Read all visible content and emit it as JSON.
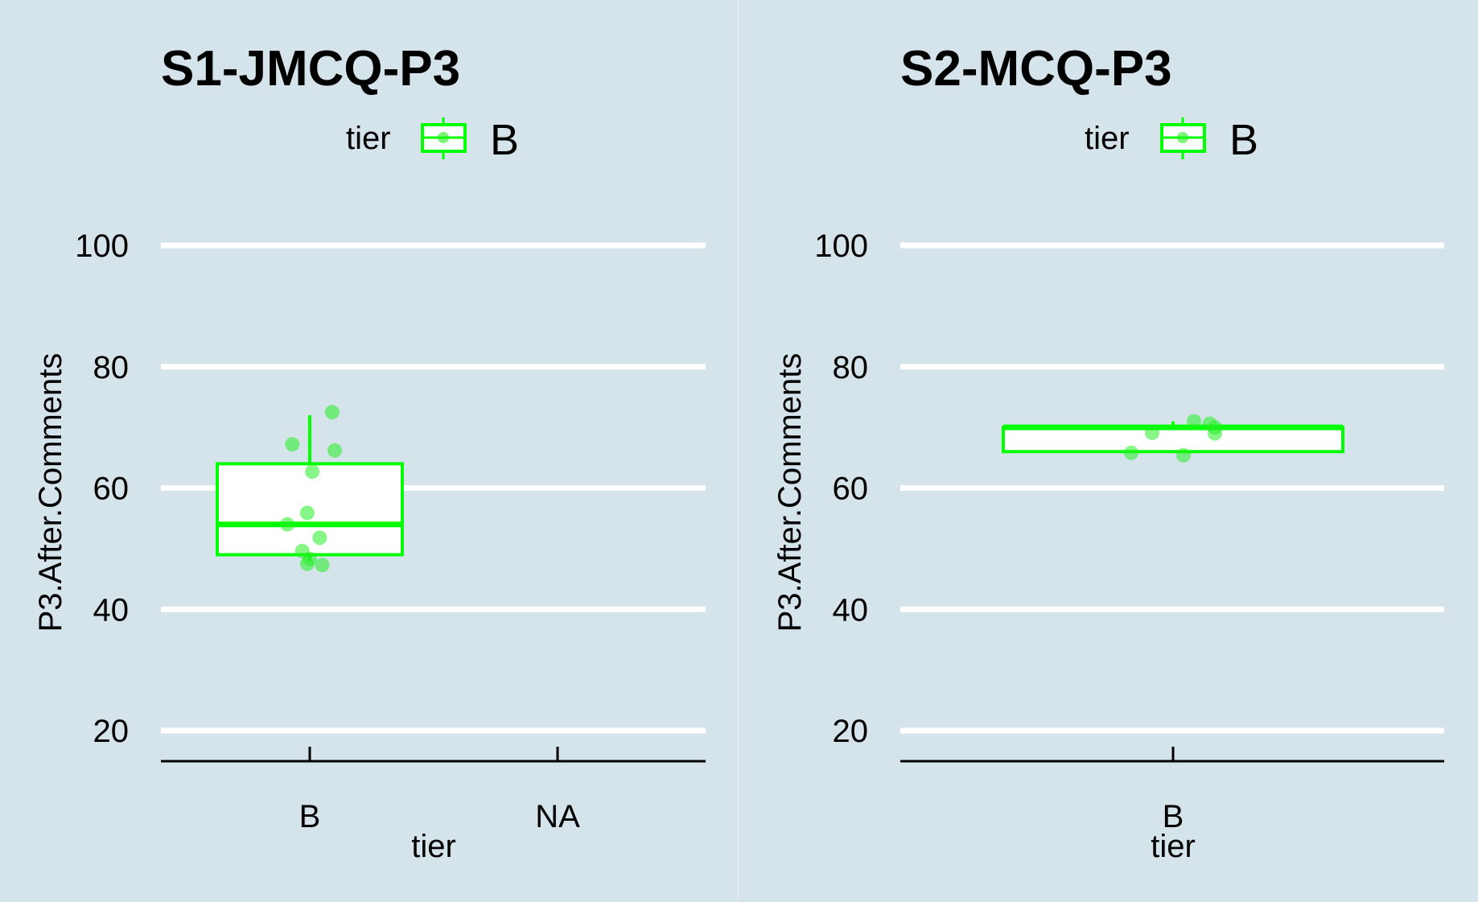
{
  "colors": {
    "background": "#d5e4eb",
    "grid": "#ffffff",
    "box_stroke": "#00ff00",
    "box_fill": "#ffffff",
    "point": "#22ee22",
    "axis": "#000000"
  },
  "chart_data": [
    {
      "type": "box",
      "title": "S1-JMCQ-P3",
      "legend": {
        "title": "tier",
        "entries": [
          "B"
        ],
        "position": "top"
      },
      "xlabel": "tier",
      "ylabel": "P3.After.Comments",
      "categories": [
        "B",
        "NA"
      ],
      "ylim": [
        15,
        100
      ],
      "yticks": [
        20,
        40,
        60,
        80,
        100
      ],
      "grid": true,
      "boxes": [
        {
          "category": "B",
          "min": 48,
          "q1": 49,
          "median": 54,
          "q3": 64,
          "max": 72
        }
      ],
      "points": [
        {
          "category": "B",
          "y": 72.5,
          "jitter": 0.09
        },
        {
          "category": "B",
          "y": 67.2,
          "jitter": -0.07
        },
        {
          "category": "B",
          "y": 66.2,
          "jitter": 0.1
        },
        {
          "category": "B",
          "y": 62.7,
          "jitter": 0.01
        },
        {
          "category": "B",
          "y": 55.9,
          "jitter": -0.01
        },
        {
          "category": "B",
          "y": 54.0,
          "jitter": -0.09
        },
        {
          "category": "B",
          "y": 51.8,
          "jitter": 0.04
        },
        {
          "category": "B",
          "y": 49.6,
          "jitter": -0.03
        },
        {
          "category": "B",
          "y": 48.3,
          "jitter": 0.0
        },
        {
          "category": "B",
          "y": 47.5,
          "jitter": -0.01
        },
        {
          "category": "B",
          "y": 47.3,
          "jitter": 0.05
        }
      ]
    },
    {
      "type": "box",
      "title": "S2-MCQ-P3",
      "legend": {
        "title": "tier",
        "entries": [
          "B"
        ],
        "position": "top"
      },
      "xlabel": "tier",
      "ylabel": "P3.After.Comments",
      "categories": [
        "B"
      ],
      "ylim": [
        15,
        100
      ],
      "yticks": [
        20,
        40,
        60,
        80,
        100
      ],
      "grid": true,
      "boxes": [
        {
          "category": "B",
          "min": 66,
          "q1": 66,
          "median": 70,
          "q3": 70,
          "max": 71
        }
      ],
      "points": [
        {
          "category": "B",
          "y": 71.0,
          "jitter": 0.04
        },
        {
          "category": "B",
          "y": 70.6,
          "jitter": 0.07
        },
        {
          "category": "B",
          "y": 70.0,
          "jitter": 0.08
        },
        {
          "category": "B",
          "y": 69.1,
          "jitter": -0.04
        },
        {
          "category": "B",
          "y": 69.0,
          "jitter": 0.08
        },
        {
          "category": "B",
          "y": 65.8,
          "jitter": -0.08
        },
        {
          "category": "B",
          "y": 65.4,
          "jitter": 0.02
        }
      ]
    }
  ]
}
